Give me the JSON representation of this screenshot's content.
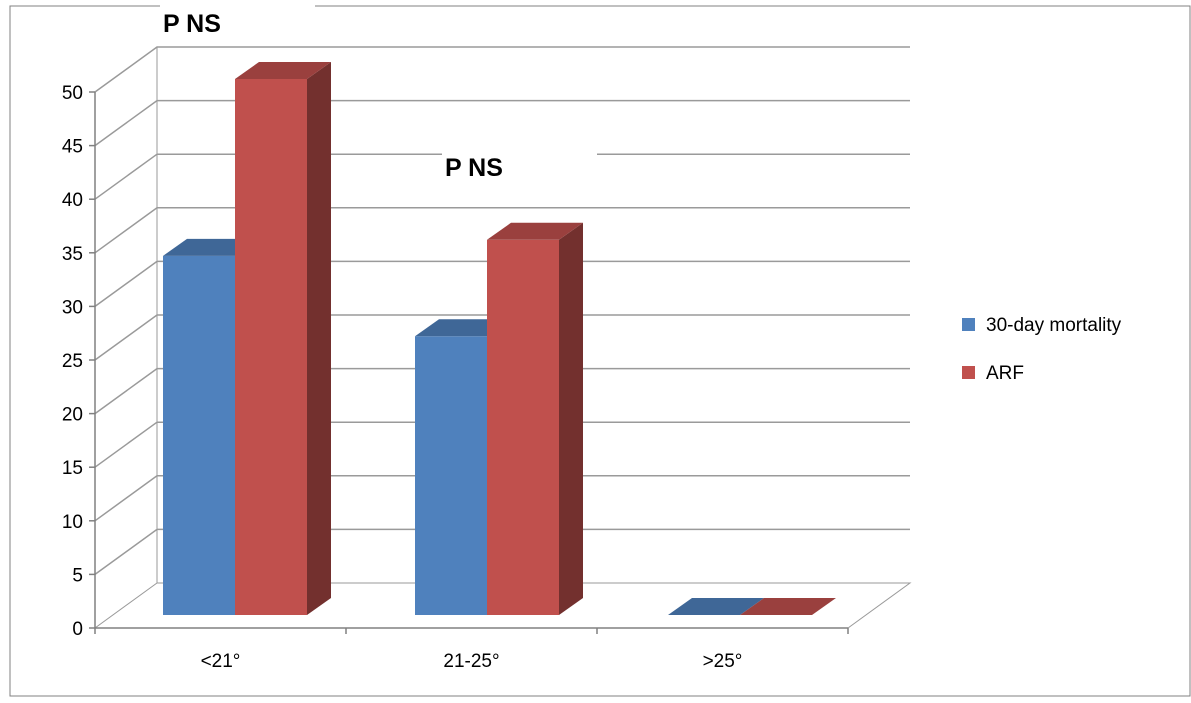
{
  "chart_data": {
    "type": "bar",
    "style": "3d-clustered-column",
    "categories": [
      "<21°",
      "21-25°",
      ">25°"
    ],
    "series": [
      {
        "name": "30-day mortality",
        "values": [
          33.5,
          26,
          0
        ],
        "color": "#4f81bd"
      },
      {
        "name": "ARF",
        "values": [
          50,
          35,
          0
        ],
        "color": "#c0504d"
      }
    ],
    "ylim": [
      0,
      50
    ],
    "yticks": [
      0,
      5,
      10,
      15,
      20,
      25,
      30,
      35,
      40,
      45,
      50
    ],
    "annotations": [
      {
        "text": "P NS",
        "category": "<21°"
      },
      {
        "text": "P NS",
        "category": "21-25°"
      }
    ],
    "grid": true,
    "legend": "right",
    "title": "",
    "xlabel": "",
    "ylabel": ""
  }
}
